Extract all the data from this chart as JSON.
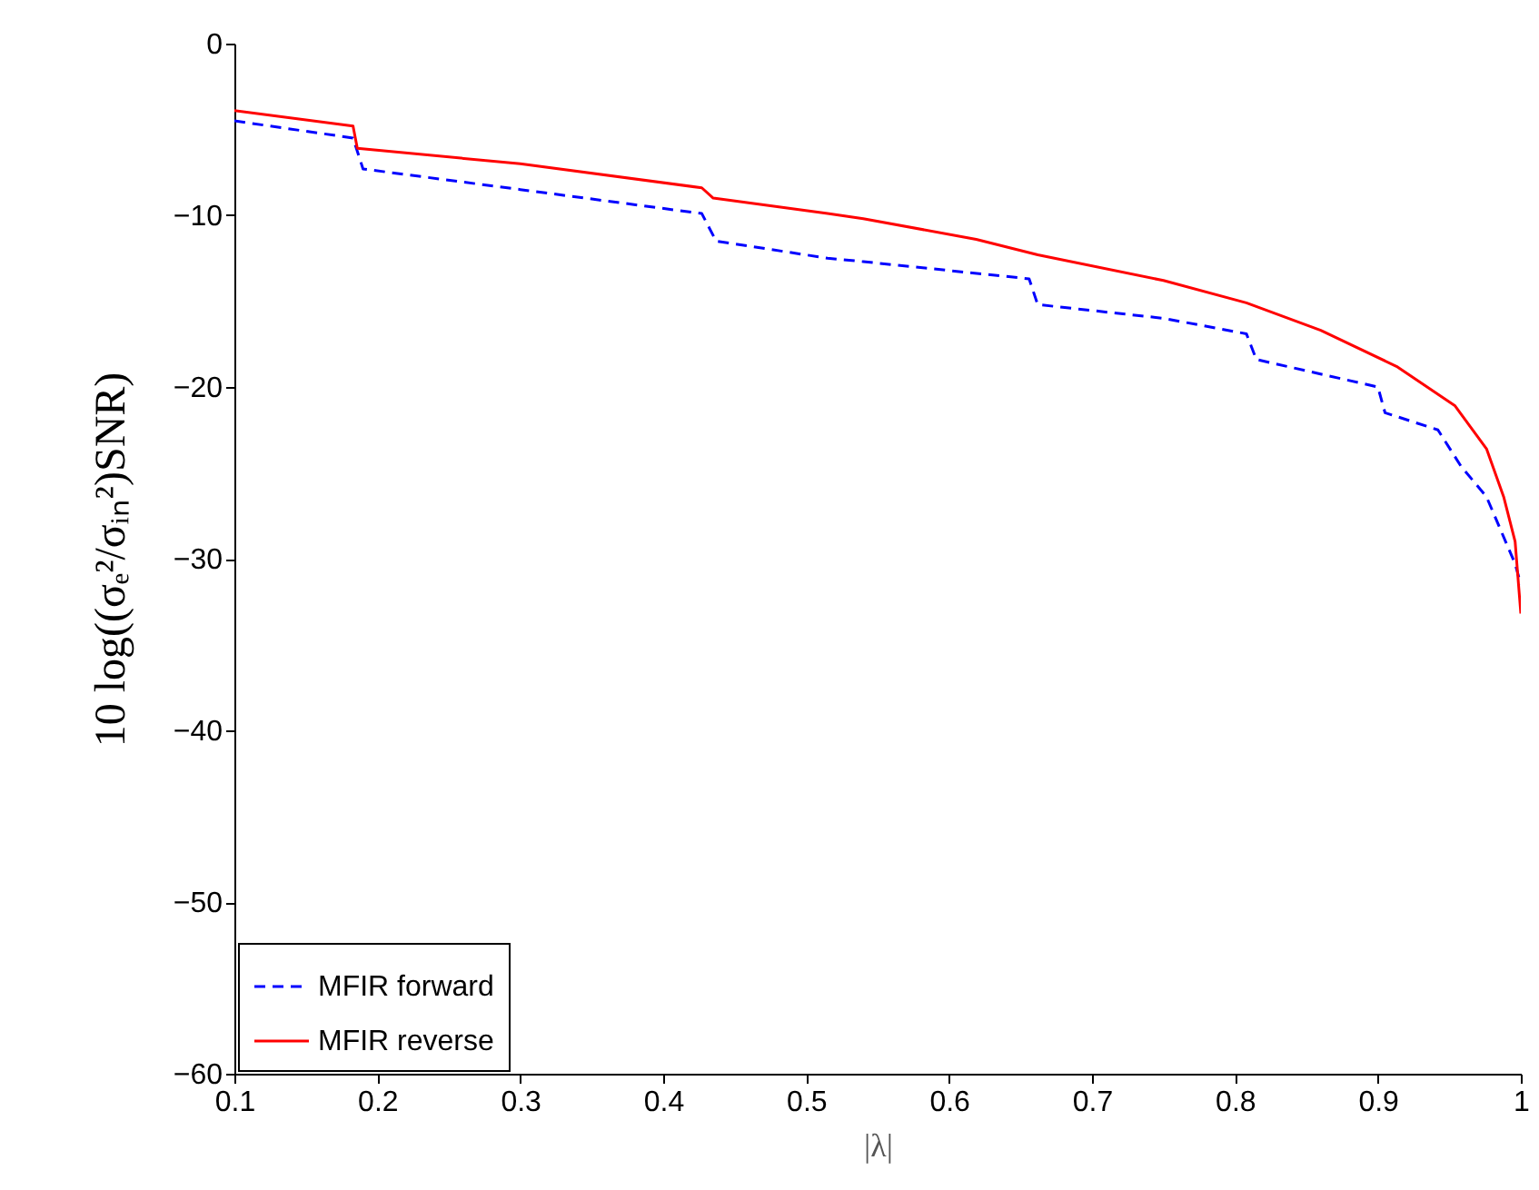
{
  "chart_data": {
    "type": "line",
    "xlabel": "|λ|",
    "ylabel": "10 log((σₑ²/σᵢₙ²)SNR)",
    "xlim": [
      0.1,
      1
    ],
    "ylim": [
      -60,
      0
    ],
    "xticks": [
      0.1,
      0.2,
      0.3,
      0.4,
      0.5,
      0.6,
      0.7,
      0.8,
      0.9,
      1
    ],
    "yticks": [
      -60,
      -50,
      -40,
      -30,
      -20,
      -10,
      0
    ],
    "legend": "bottom left",
    "series": [
      {
        "name": "MFIR forward",
        "color": "#0000ff",
        "line_style": "dashed",
        "x": [
          0.1,
          0.183,
          0.19,
          0.3,
          0.427,
          0.437,
          0.515,
          0.54,
          0.656,
          0.662,
          0.75,
          0.808,
          0.815,
          0.9,
          0.905,
          0.942,
          0.958,
          0.976,
          0.996,
          1.0
        ],
        "values": [
          -4.5,
          -5.5,
          -7.3,
          -8.5,
          -9.9,
          -11.5,
          -12.5,
          -12.7,
          -13.7,
          -15.2,
          -16.0,
          -16.9,
          -18.4,
          -20.0,
          -21.5,
          -22.5,
          -24.6,
          -26.4,
          -30.3,
          -31.5
        ]
      },
      {
        "name": "MFIR reverse",
        "color": "#ff0000",
        "line_style": "solid",
        "x": [
          0.1,
          0.183,
          0.186,
          0.3,
          0.427,
          0.435,
          0.515,
          0.54,
          0.619,
          0.662,
          0.75,
          0.808,
          0.86,
          0.913,
          0.954,
          0.976,
          0.988,
          0.996,
          1.0
        ],
        "values": [
          -3.9,
          -4.8,
          -6.1,
          -7.0,
          -8.4,
          -9.0,
          -9.9,
          -10.2,
          -11.4,
          -12.3,
          -13.8,
          -15.1,
          -16.7,
          -18.8,
          -21.1,
          -23.6,
          -26.4,
          -29.0,
          -33.2
        ]
      }
    ]
  }
}
